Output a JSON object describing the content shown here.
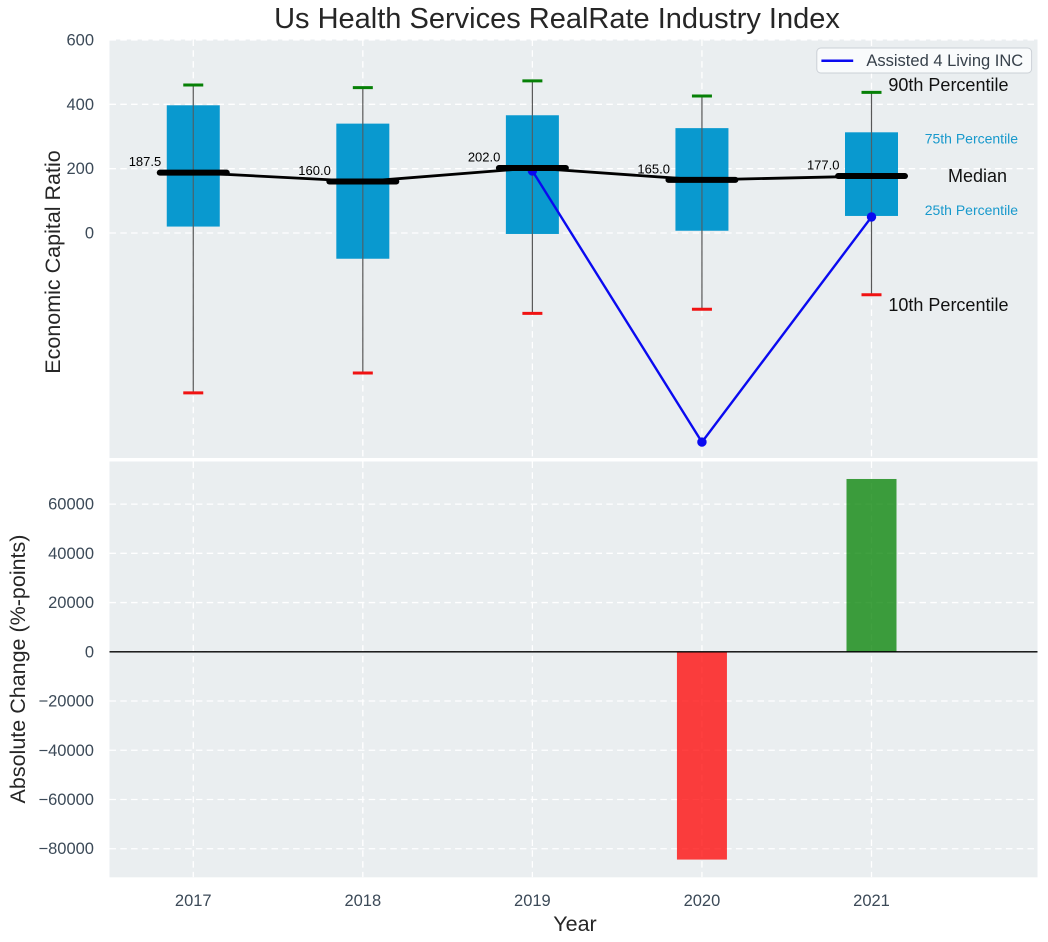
{
  "title": "Us Health Services RealRate Industry Index",
  "colors": {
    "figure_background": "#ffffff",
    "axes_background": "#eaeef0",
    "grid": "#ffffff",
    "box_fill": "#0999cf",
    "whisker": "#575757",
    "cap_90th": "#068006",
    "cap_10th": "#f01212",
    "median_line": "#000000",
    "company_line": "#0a0af0",
    "bar_negative": "#ff0000",
    "bar_positive": "#008000",
    "zero_line": "#000000",
    "tick_text": "#3c4a58",
    "annotation_cyan": "#1899cc",
    "annotation_black": "#111111",
    "legend_border": "#cbd0d6",
    "legend_background": "#fbfcfd"
  },
  "chart_data": [
    {
      "type": "boxplot",
      "title": "Us Health Services RealRate Industry Index",
      "ylabel": "Economic Capital Ratio",
      "categories": [
        2017,
        2018,
        2019,
        2020,
        2021
      ],
      "yticks": [
        0,
        200,
        400,
        600
      ],
      "ylim": [
        -699.4,
        601.5
      ],
      "xlim": [
        2016.506,
        2021.979
      ],
      "grid": "white dashed on light gray",
      "legend_position": "upper right",
      "boxes": [
        {
          "year": 2017,
          "p10": -497,
          "p25": 20,
          "median": 187.5,
          "p75": 397,
          "p90": 460,
          "median_label": "187.5"
        },
        {
          "year": 2018,
          "p10": -435,
          "p25": -80,
          "median": 160.0,
          "p75": 340,
          "p90": 452,
          "median_label": "160.0"
        },
        {
          "year": 2019,
          "p10": -250,
          "p25": -3,
          "median": 202.0,
          "p75": 366,
          "p90": 473,
          "median_label": "202.0"
        },
        {
          "year": 2020,
          "p10": -237,
          "p25": 7,
          "median": 165.0,
          "p75": 326,
          "p90": 426,
          "median_label": "165.0"
        },
        {
          "year": 2021,
          "p10": -192,
          "p25": 53,
          "median": 177.0,
          "p75": 313,
          "p90": 437,
          "median_label": "177.0"
        }
      ],
      "series": [
        {
          "name": "Assisted 4 Living INC",
          "x": [
            2019,
            2020,
            2021
          ],
          "values": [
            193,
            -650,
            50
          ]
        }
      ],
      "legend": {
        "label": "Assisted 4 Living INC"
      },
      "annotations": [
        {
          "text": "90th Percentile",
          "style": "black"
        },
        {
          "text": "75th Percentile",
          "style": "cyan"
        },
        {
          "text": "Median",
          "style": "black"
        },
        {
          "text": "25th Percentile",
          "style": "cyan"
        },
        {
          "text": "10th Percentile",
          "style": "black"
        }
      ]
    },
    {
      "type": "bar",
      "xlabel": "Year",
      "ylabel": "Absolute Change (%-points)",
      "categories": [
        2017,
        2018,
        2019,
        2020,
        2021
      ],
      "values": [
        null,
        null,
        null,
        -84400,
        70200
      ],
      "yticks": [
        -80000,
        -60000,
        -40000,
        -20000,
        0,
        20000,
        40000,
        60000
      ],
      "ylim": [
        -91600,
        77300
      ],
      "zero_line": true
    }
  ]
}
